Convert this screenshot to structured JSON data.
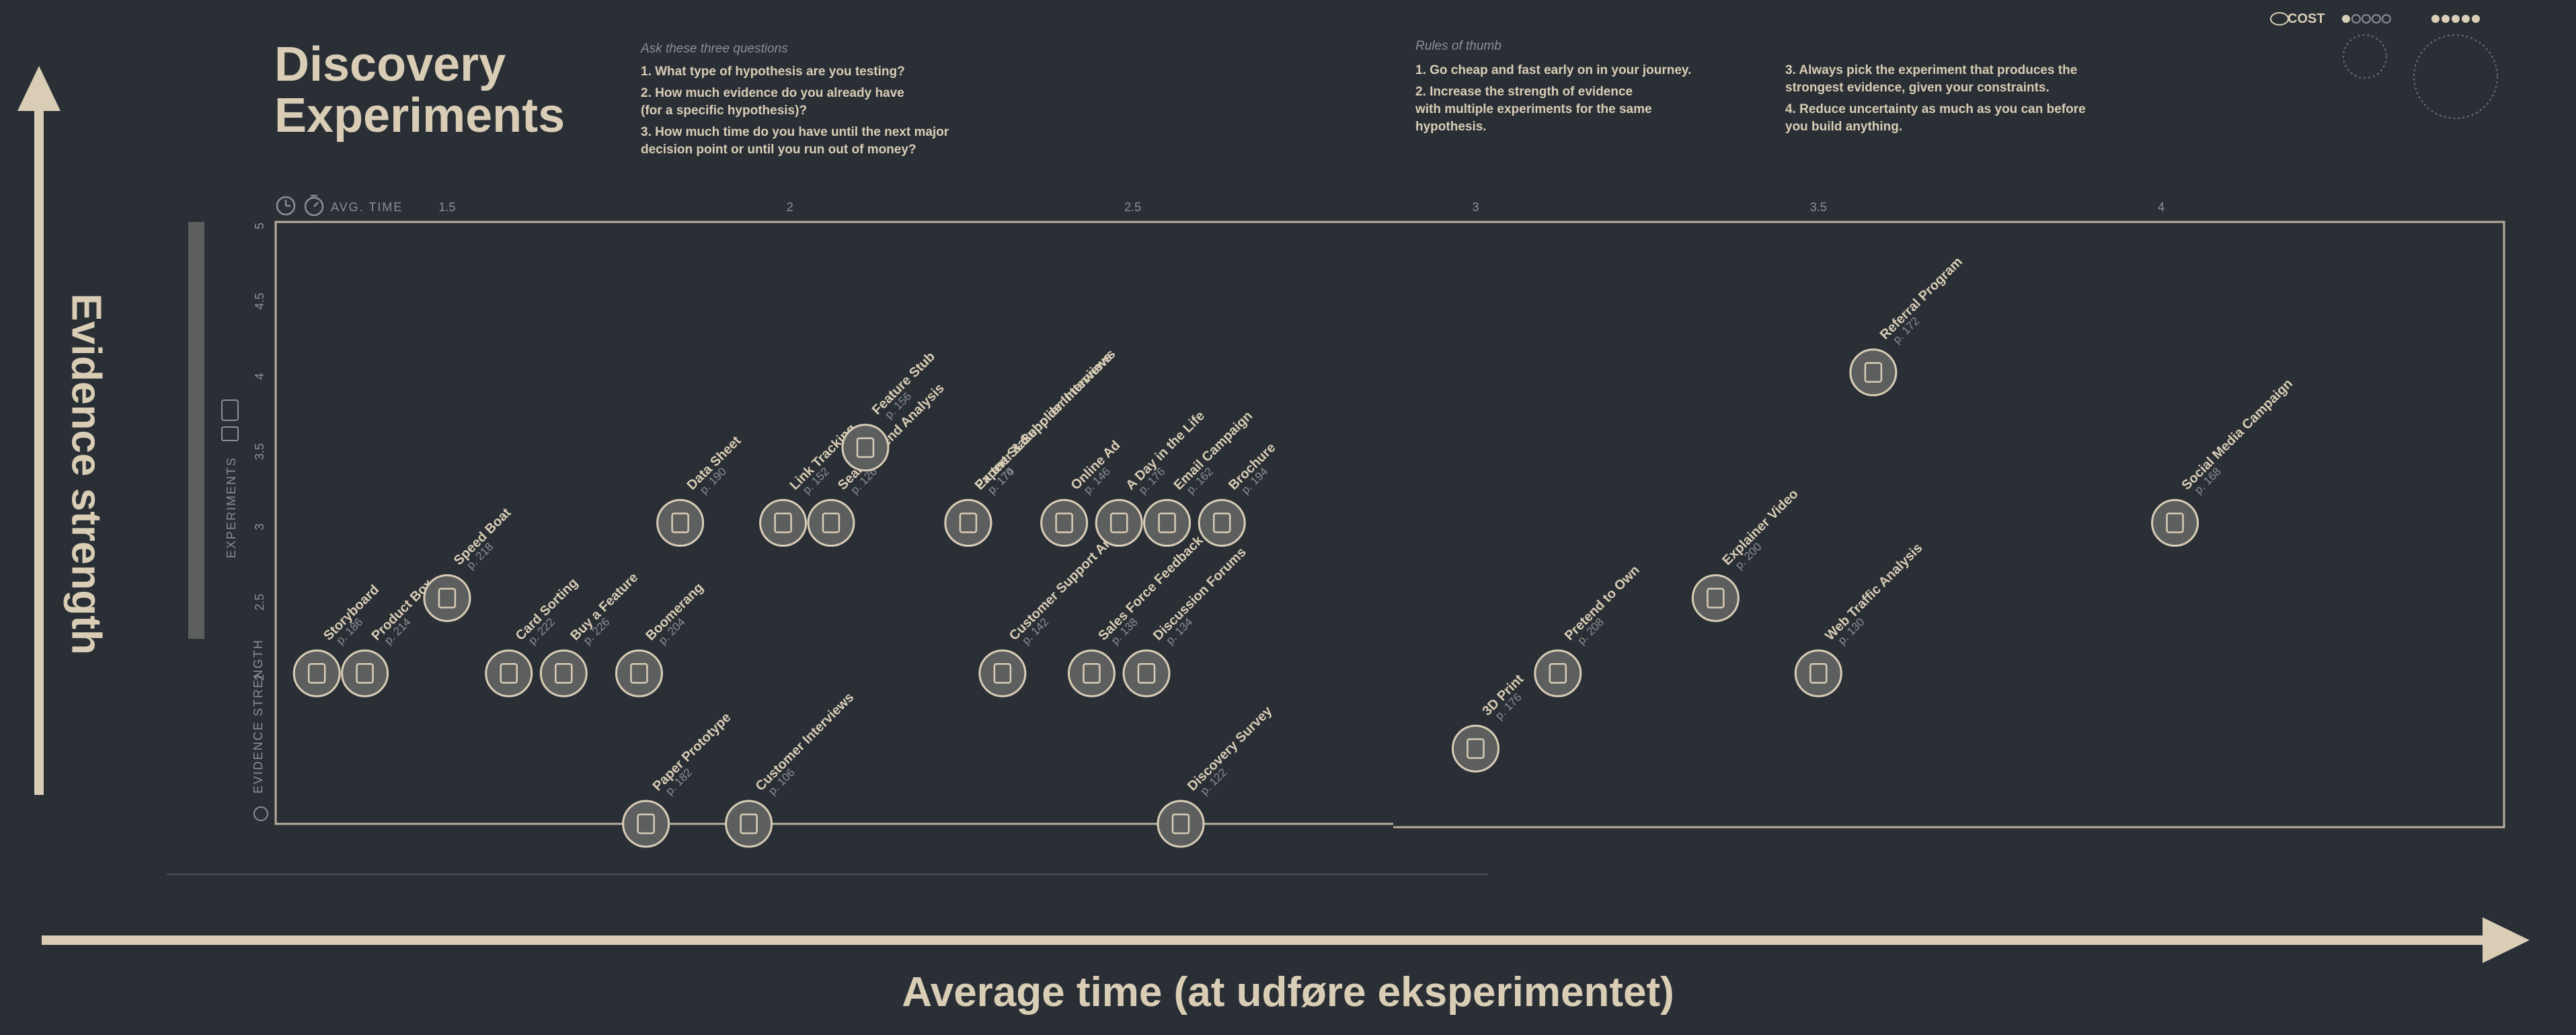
{
  "header": {
    "title": "Discovery\nExperiments",
    "questions_heading": "Ask these three questions",
    "questions": [
      "1. What type of hypothesis are you testing?",
      "2. How much evidence do you already have\n    (for a specific hypothesis)?",
      "3. How much time do you have until the next major\n    decision point or until you run out of money?"
    ],
    "rules_heading": "Rules of thumb",
    "rules_left": [
      "1. Go cheap and fast early on in your journey.",
      "2. Increase the strength of evidence\n    with multiple experiments for the same\n    hypothesis."
    ],
    "rules_right": [
      "3. Always pick the experiment that produces the\n    strongest evidence, given your constraints.",
      "4. Reduce uncertainty as much as you can before\n    you build anything."
    ],
    "cost_label": "COST"
  },
  "axes_titles": {
    "y": "Evidence strength",
    "x": "Average time (at udføre eksperimentet)"
  },
  "side_labels": {
    "experiments": "EXPERIMENTS",
    "evidence": "EVIDENCE STRENGTH",
    "avg_time": "AVG. TIME"
  },
  "colors": {
    "background": "#2a2f35",
    "accent": "#d9cdb6",
    "muted": "#8a8f93",
    "icon_fill": "#5d5f5e"
  },
  "chart_data": {
    "type": "scatter",
    "title": "Discovery Experiments",
    "xlabel": "Average time (at udføre eksperimentet)",
    "ylabel": "Evidence strength",
    "x_ticks": [
      1.5,
      2,
      2.5,
      3,
      3.5,
      4
    ],
    "y_ticks": [
      2,
      2.5,
      3,
      3.5,
      4,
      4.5,
      5
    ],
    "xlim": [
      1.25,
      4.5
    ],
    "ylim": [
      1,
      5
    ],
    "points": [
      {
        "name": "Storyboard",
        "page": "p. 186",
        "x": 1.31,
        "y": 2
      },
      {
        "name": "Product Box",
        "page": "p. 214",
        "x": 1.38,
        "y": 2
      },
      {
        "name": "Speed Boat",
        "page": "p. 218",
        "x": 1.5,
        "y": 2.5
      },
      {
        "name": "Card Sorting",
        "page": "p. 222",
        "x": 1.59,
        "y": 2
      },
      {
        "name": "Buy a Feature",
        "page": "p. 226",
        "x": 1.67,
        "y": 2
      },
      {
        "name": "Boomerang",
        "page": "p. 204",
        "x": 1.78,
        "y": 2
      },
      {
        "name": "Paper Prototype",
        "page": "p. 182",
        "x": 1.79,
        "y": 1
      },
      {
        "name": "Data Sheet",
        "page": "p. 190",
        "x": 1.84,
        "y": 3
      },
      {
        "name": "Customer Interviews",
        "page": "p. 106",
        "x": 1.94,
        "y": 1
      },
      {
        "name": "Link Tracking",
        "page": "p. 152",
        "x": 1.99,
        "y": 3
      },
      {
        "name": "Search Trend Analysis",
        "page": "p. 126",
        "x": 2.06,
        "y": 3
      },
      {
        "name": "Feature Stub",
        "page": "p. 156",
        "x": 2.11,
        "y": 3.5
      },
      {
        "name": "Partner & Supplier Interviews",
        "page": "p. 174",
        "x": 2.26,
        "y": 3
      },
      {
        "name": "Expert Stakeholder Interviews",
        "page": "p. 170",
        "x": 2.26,
        "y": 3
      },
      {
        "name": "Customer Support Analysis",
        "page": "p. 142",
        "x": 2.31,
        "y": 2
      },
      {
        "name": "Online Ad",
        "page": "p. 146",
        "x": 2.4,
        "y": 3
      },
      {
        "name": "Sales Force Feedback",
        "page": "p. 138",
        "x": 2.44,
        "y": 2
      },
      {
        "name": "A Day in the Life",
        "page": "p. 176",
        "x": 2.48,
        "y": 3
      },
      {
        "name": "Discussion Forums",
        "page": "p. 134",
        "x": 2.52,
        "y": 2
      },
      {
        "name": "Email Campaign",
        "page": "p. 162",
        "x": 2.55,
        "y": 3
      },
      {
        "name": "Brochure",
        "page": "p. 194",
        "x": 2.63,
        "y": 3
      },
      {
        "name": "Discovery Survey",
        "page": "p. 122",
        "x": 2.57,
        "y": 1
      },
      {
        "name": "3D Print",
        "page": "p. 176",
        "x": 3,
        "y": 1.5
      },
      {
        "name": "Pretend to Own",
        "page": "p. 208",
        "x": 3.12,
        "y": 2
      },
      {
        "name": "Explainer Video",
        "page": "p. 200",
        "x": 3.35,
        "y": 2.5
      },
      {
        "name": "Web Traffic Analysis",
        "page": "p. 130",
        "x": 3.5,
        "y": 2
      },
      {
        "name": "Referral Program",
        "page": "p. 172",
        "x": 3.58,
        "y": 4
      },
      {
        "name": "Social Media Campaign",
        "page": "p. 168",
        "x": 4.02,
        "y": 3
      }
    ]
  }
}
